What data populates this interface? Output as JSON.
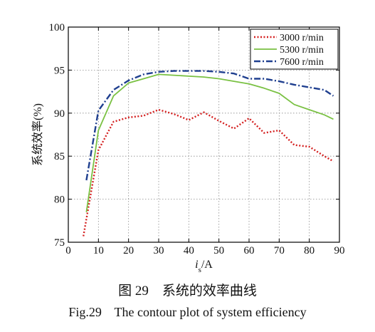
{
  "chart_data": {
    "type": "line",
    "xlabel_italic": "i",
    "xlabel_subscript": "s",
    "xlabel_rest": "/A",
    "ylabel": "系统效率(%)",
    "xlim": [
      0,
      90
    ],
    "ylim": [
      75,
      100
    ],
    "xticks": [
      0,
      10,
      20,
      30,
      40,
      50,
      60,
      70,
      80,
      90
    ],
    "yticks": [
      75,
      80,
      85,
      90,
      95,
      100
    ],
    "grid": "dotted",
    "legend_position": "top-right",
    "series": [
      {
        "name": "3000 r/min",
        "color": "#d42020",
        "style": "dotted",
        "x": [
          5,
          10,
          15,
          20,
          25,
          30,
          35,
          40,
          45,
          50,
          55,
          60,
          65,
          70,
          75,
          80,
          85,
          88
        ],
        "y": [
          75.7,
          85.7,
          89.0,
          89.5,
          89.7,
          90.4,
          89.9,
          89.2,
          90.1,
          89.1,
          88.2,
          89.4,
          87.7,
          88.0,
          86.3,
          86.1,
          85.0,
          84.4
        ]
      },
      {
        "name": "5300 r/min",
        "color": "#7ac143",
        "style": "solid",
        "x": [
          6,
          10,
          15,
          20,
          25,
          30,
          35,
          40,
          45,
          50,
          55,
          60,
          65,
          70,
          75,
          80,
          85,
          88
        ],
        "y": [
          78.5,
          88.0,
          92.0,
          93.5,
          94.0,
          94.5,
          94.4,
          94.3,
          94.2,
          94.0,
          93.7,
          93.4,
          92.9,
          92.3,
          91.0,
          90.4,
          89.8,
          89.3
        ]
      },
      {
        "name": "7600 r/min",
        "color": "#1f3f8f",
        "style": "dashdot",
        "x": [
          6,
          10,
          15,
          20,
          25,
          30,
          35,
          40,
          45,
          50,
          55,
          60,
          65,
          70,
          75,
          80,
          85,
          88
        ],
        "y": [
          82.2,
          90.3,
          92.7,
          93.8,
          94.5,
          94.8,
          94.9,
          94.9,
          94.9,
          94.8,
          94.6,
          94.0,
          94.0,
          93.7,
          93.3,
          93.0,
          92.7,
          92.0
        ]
      }
    ]
  },
  "captions": {
    "cn": "图 29    系统的效率曲线",
    "en": "Fig.29    The contour plot of system efficiency"
  }
}
